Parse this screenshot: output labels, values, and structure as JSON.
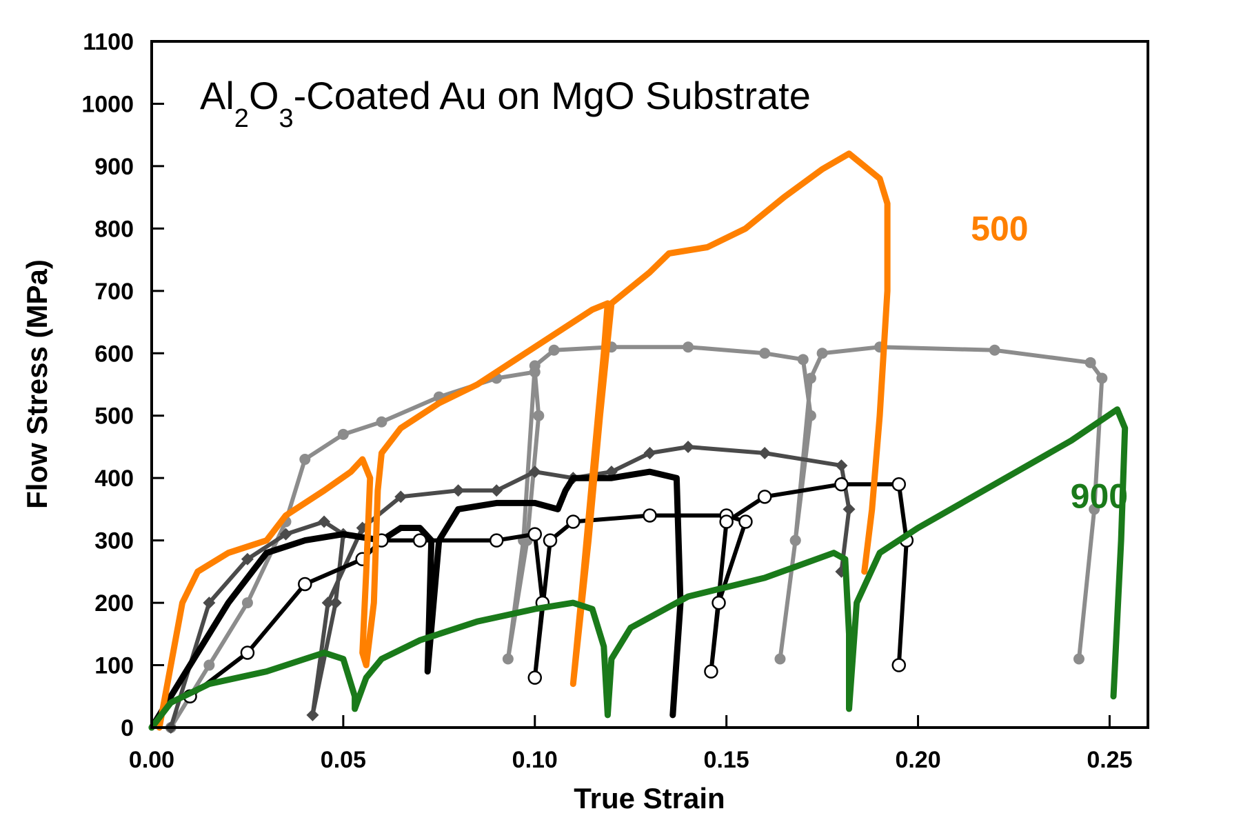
{
  "chart_data": {
    "type": "line",
    "title": [
      "Al",
      "2",
      "O",
      "3",
      "-Coated Au on MgO Substrate"
    ],
    "x_label": "True Strain",
    "y_label": "Flow Stress (MPa)",
    "xlim": [
      0,
      0.26
    ],
    "ylim": [
      0,
      1100
    ],
    "xticks": [
      {
        "value": 0,
        "label": "0.00"
      },
      {
        "value": 0.05,
        "label": "0.05"
      },
      {
        "value": 0.1,
        "label": "0.10"
      },
      {
        "value": 0.15,
        "label": "0.15"
      },
      {
        "value": 0.2,
        "label": "0.20"
      },
      {
        "value": 0.25,
        "label": "0.25"
      }
    ],
    "yticks": [
      0,
      100,
      200,
      300,
      400,
      500,
      600,
      700,
      800,
      900,
      1000,
      1100
    ],
    "series": [
      {
        "color": "#8c8c8c",
        "marker": "circle",
        "x": [
          0.005,
          0.015,
          0.025,
          0.035,
          0.04,
          0.05,
          0.06,
          0.075,
          0.09,
          0.1,
          0.101,
          0.098,
          0.093,
          0.097,
          0.1,
          0.105,
          0.12,
          0.14,
          0.16,
          0.17,
          0.172,
          0.168,
          0.164,
          0.168,
          0.172,
          0.175,
          0.19,
          0.22,
          0.245,
          0.248,
          0.246,
          0.242
        ],
        "values": [
          0,
          100,
          200,
          330,
          430,
          470,
          490,
          530,
          560,
          570,
          500,
          300,
          110,
          300,
          580,
          605,
          610,
          610,
          600,
          590,
          500,
          300,
          110,
          300,
          560,
          600,
          610,
          605,
          585,
          560,
          350,
          110
        ]
      },
      {
        "color": "#4a4a4a",
        "marker": "diamond",
        "x": [
          0.005,
          0.015,
          0.025,
          0.035,
          0.045,
          0.05,
          0.048,
          0.042,
          0.046,
          0.055,
          0.065,
          0.08,
          0.09,
          0.1,
          0.11,
          0.12,
          0.13,
          0.14,
          0.16,
          0.18,
          0.182,
          0.18
        ],
        "values": [
          0,
          200,
          270,
          310,
          330,
          310,
          200,
          20,
          200,
          320,
          370,
          380,
          380,
          410,
          400,
          410,
          440,
          450,
          440,
          420,
          350,
          250
        ]
      },
      {
        "color": "#000000",
        "marker": "none",
        "x": [
          0.0,
          0.01,
          0.02,
          0.03,
          0.04,
          0.05,
          0.06,
          0.065,
          0.07,
          0.073,
          0.072,
          0.075,
          0.08,
          0.09,
          0.1,
          0.106,
          0.108,
          0.11,
          0.12,
          0.13,
          0.137,
          0.138,
          0.136
        ],
        "values": [
          0,
          100,
          200,
          280,
          300,
          310,
          300,
          320,
          320,
          300,
          90,
          300,
          350,
          360,
          360,
          350,
          380,
          400,
          400,
          410,
          400,
          200,
          20
        ]
      },
      {
        "color": "#000000",
        "marker": "open-circle",
        "x": [
          0.01,
          0.025,
          0.04,
          0.055,
          0.06,
          0.07,
          0.09,
          0.1,
          0.102,
          0.1,
          0.104,
          0.11,
          0.13,
          0.15,
          0.155,
          0.148,
          0.146,
          0.15,
          0.16,
          0.18,
          0.195,
          0.197,
          0.195
        ],
        "values": [
          50,
          120,
          230,
          270,
          300,
          300,
          300,
          310,
          200,
          80,
          300,
          330,
          340,
          340,
          330,
          200,
          90,
          330,
          370,
          390,
          390,
          300,
          100
        ]
      },
      {
        "name": "500",
        "color": "#ff8000",
        "marker": "none",
        "x": [
          0.002,
          0.005,
          0.008,
          0.012,
          0.02,
          0.03,
          0.035,
          0.045,
          0.052,
          0.055,
          0.057,
          0.056,
          0.055,
          0.056,
          0.058,
          0.059,
          0.06,
          0.065,
          0.075,
          0.085,
          0.095,
          0.105,
          0.115,
          0.119,
          0.118,
          0.115,
          0.112,
          0.11,
          0.114,
          0.117,
          0.12,
          0.13,
          0.135,
          0.145,
          0.155,
          0.165,
          0.175,
          0.182,
          0.19,
          0.192,
          0.192,
          0.19,
          0.188,
          0.186
        ],
        "values": [
          0,
          100,
          200,
          250,
          280,
          300,
          340,
          380,
          410,
          430,
          400,
          250,
          120,
          100,
          200,
          380,
          440,
          480,
          520,
          550,
          590,
          630,
          670,
          680,
          600,
          400,
          200,
          70,
          300,
          500,
          680,
          730,
          760,
          770,
          800,
          850,
          895,
          920,
          880,
          840,
          700,
          500,
          350,
          250
        ]
      },
      {
        "name": "900",
        "color": "#1a7a1a",
        "marker": "none",
        "x": [
          0,
          0.005,
          0.015,
          0.03,
          0.04,
          0.045,
          0.05,
          0.053,
          0.053,
          0.056,
          0.06,
          0.07,
          0.085,
          0.1,
          0.11,
          0.115,
          0.118,
          0.119,
          0.12,
          0.125,
          0.14,
          0.16,
          0.178,
          0.181,
          0.182,
          0.182,
          0.184,
          0.19,
          0.2,
          0.22,
          0.24,
          0.252,
          0.254,
          0.253,
          0.251
        ],
        "values": [
          0,
          40,
          70,
          90,
          110,
          120,
          110,
          50,
          30,
          80,
          110,
          140,
          170,
          190,
          200,
          190,
          130,
          20,
          110,
          160,
          210,
          240,
          280,
          270,
          150,
          30,
          200,
          280,
          320,
          390,
          460,
          510,
          480,
          300,
          50
        ]
      }
    ]
  }
}
